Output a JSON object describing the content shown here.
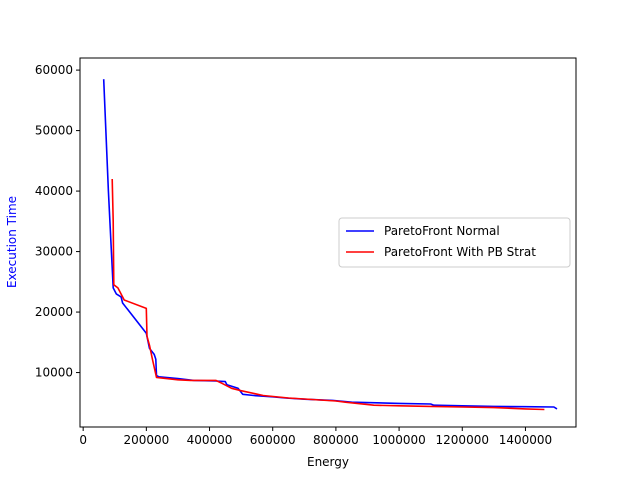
{
  "chart_data": {
    "type": "line",
    "title": "",
    "xlabel": "Energy",
    "ylabel": "Execution Time",
    "ylabel_color": "#0000ff",
    "xlim": [
      -10000,
      1560000
    ],
    "ylim": [
      1000,
      62000
    ],
    "xticks": [
      0,
      200000,
      400000,
      600000,
      800000,
      1000000,
      1200000,
      1400000
    ],
    "xtick_labels": [
      "0",
      "200000",
      "400000",
      "600000",
      "800000",
      "1000000",
      "1200000",
      "1400000"
    ],
    "yticks": [
      10000,
      20000,
      30000,
      40000,
      50000,
      60000
    ],
    "ytick_labels": [
      "10000",
      "20000",
      "30000",
      "40000",
      "50000",
      "60000"
    ],
    "grid": false,
    "legend_position": "center-right",
    "series": [
      {
        "name": "ParetoFront Normal",
        "color": "#0000ff",
        "x": [
          65000,
          80000,
          95000,
          105000,
          120000,
          125000,
          200000,
          210000,
          225000,
          230000,
          232000,
          240000,
          300000,
          350000,
          420000,
          450000,
          455000,
          490000,
          505000,
          540000,
          600000,
          640000,
          700000,
          790000,
          850000,
          1000000,
          1100000,
          1110000,
          1200000,
          1300000,
          1400000,
          1490000,
          1500000
        ],
        "y": [
          58500,
          40000,
          24000,
          23000,
          22500,
          21500,
          16500,
          14000,
          13000,
          12200,
          9500,
          9300,
          9000,
          8700,
          8600,
          8500,
          8000,
          7400,
          6400,
          6200,
          6000,
          5800,
          5600,
          5400,
          5100,
          4900,
          4800,
          4600,
          4500,
          4400,
          4350,
          4300,
          4000
        ]
      },
      {
        "name": "ParetoFront With PB Strat",
        "color": "#ff0000",
        "x": [
          92000,
          95000,
          97000,
          110000,
          130000,
          200000,
          202000,
          210000,
          220000,
          232000,
          300000,
          340000,
          420000,
          440000,
          470000,
          500000,
          570000,
          650000,
          800000,
          830000,
          920000,
          1000000,
          1100000,
          1200000,
          1300000,
          1400000,
          1460000
        ],
        "y": [
          42000,
          35000,
          24500,
          24000,
          22000,
          20600,
          16000,
          14500,
          12000,
          9200,
          8800,
          8700,
          8700,
          8200,
          7400,
          7000,
          6200,
          5800,
          5300,
          5100,
          4600,
          4500,
          4400,
          4300,
          4200,
          4000,
          3900
        ]
      }
    ]
  }
}
